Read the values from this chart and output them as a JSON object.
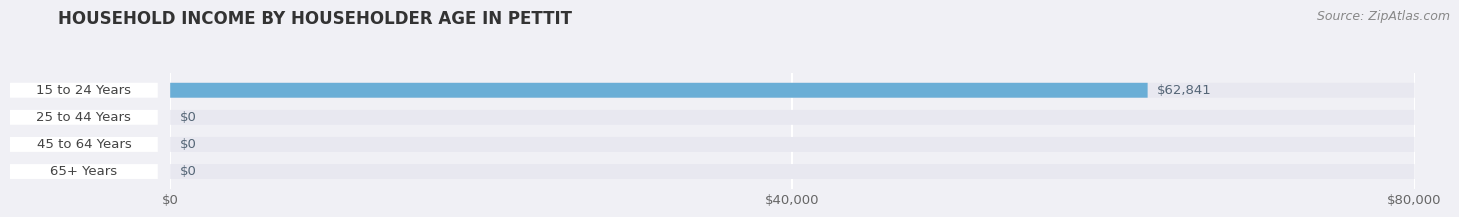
{
  "title": "HOUSEHOLD INCOME BY HOUSEHOLDER AGE IN PETTIT",
  "source": "Source: ZipAtlas.com",
  "categories": [
    "15 to 24 Years",
    "25 to 44 Years",
    "45 to 64 Years",
    "65+ Years"
  ],
  "values": [
    62841,
    0,
    0,
    0
  ],
  "bar_colors": [
    "#6aaed6",
    "#c9a0c8",
    "#70c8b8",
    "#a8a8d8"
  ],
  "bar_bg_color": "#e8e8f0",
  "xlim": [
    0,
    80000
  ],
  "xticks": [
    0,
    40000,
    80000
  ],
  "xtick_labels": [
    "$0",
    "$40,000",
    "$80,000"
  ],
  "background_color": "#f0f0f5",
  "bar_height": 0.55,
  "label_fontsize": 9.5,
  "value_fontsize": 9.5,
  "title_fontsize": 12,
  "source_fontsize": 9,
  "pill_color": "white",
  "pill_text_color": "#444444",
  "value_text_color": "#556677"
}
